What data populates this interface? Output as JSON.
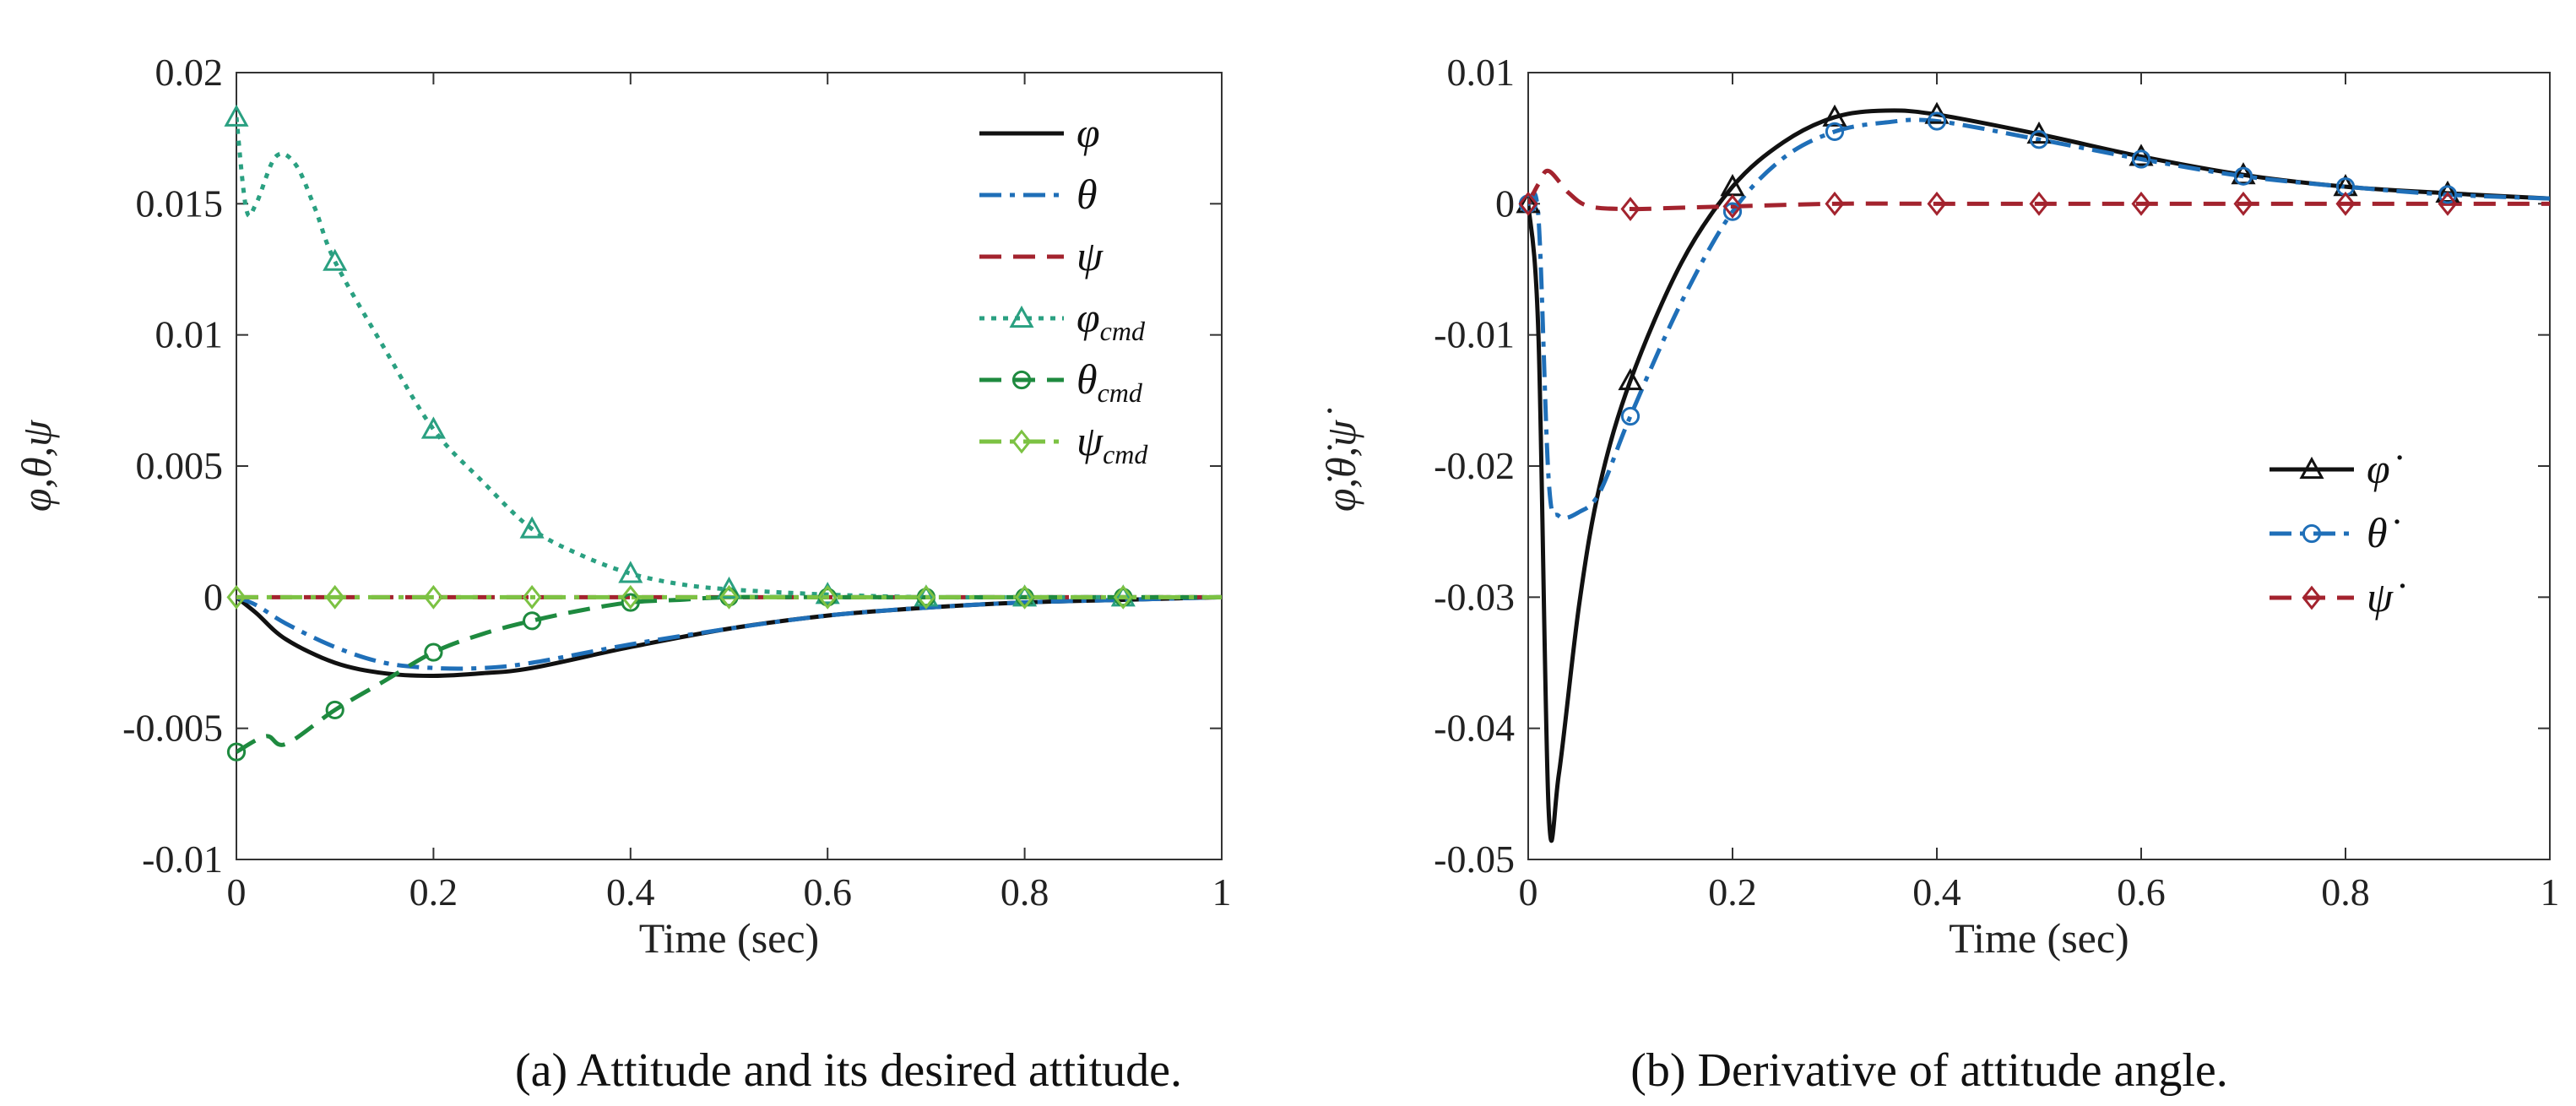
{
  "captions": [
    "(a)  Attitude and its desired attitude.",
    "(b)  Derivative of attitude angle."
  ],
  "chart_data": [
    {
      "type": "line",
      "xlabel": "Time (sec)",
      "ylabel": "φ,θ,ψ",
      "xlim": [
        0,
        1
      ],
      "ylim": [
        -0.01,
        0.02
      ],
      "xticks": [
        "0",
        "0.2",
        "0.4",
        "0.6",
        "0.8",
        "1"
      ],
      "yticks": [
        "-0.01",
        "-0.005",
        "0",
        "0.005",
        "0.01",
        "0.015",
        "0.02"
      ],
      "grid": false,
      "legend": "top-right",
      "series": [
        {
          "name": "φ",
          "sub": "",
          "color": "#111111",
          "dash": "solid",
          "marker": "none",
          "x": [
            0,
            0.02,
            0.05,
            0.1,
            0.15,
            0.2,
            0.25,
            0.3,
            0.4,
            0.5,
            0.6,
            0.7,
            0.8,
            0.9,
            1.0
          ],
          "y": [
            0,
            -0.0006,
            -0.0016,
            -0.0025,
            -0.0029,
            -0.003,
            -0.0029,
            -0.0027,
            -0.0019,
            -0.0012,
            -0.0007,
            -0.0004,
            -0.0002,
            -0.0001,
            0
          ]
        },
        {
          "name": "θ",
          "sub": "",
          "color": "#1f6fb8",
          "dash": "dashdot",
          "marker": "none",
          "x": [
            0,
            0.02,
            0.05,
            0.1,
            0.15,
            0.2,
            0.25,
            0.3,
            0.4,
            0.5,
            0.6,
            0.7,
            0.8,
            0.9,
            1.0
          ],
          "y": [
            0,
            -0.0003,
            -0.001,
            -0.0019,
            -0.0025,
            -0.0027,
            -0.0027,
            -0.0025,
            -0.0018,
            -0.0012,
            -0.0007,
            -0.0004,
            -0.0002,
            -0.0001,
            0
          ]
        },
        {
          "name": "ψ",
          "sub": "",
          "color": "#a3232e",
          "dash": "dash",
          "marker": "none",
          "x": [
            0,
            0.5,
            1.0
          ],
          "y": [
            0,
            0,
            0
          ]
        },
        {
          "name": "φ",
          "sub": "cmd",
          "color": "#2aa081",
          "dash": "dot",
          "marker": "triangle",
          "x": [
            0,
            0.01,
            0.02,
            0.04,
            0.06,
            0.08,
            0.1,
            0.15,
            0.2,
            0.25,
            0.3,
            0.35,
            0.4,
            0.45,
            0.5,
            0.6,
            0.7,
            0.8,
            0.9,
            1.0
          ],
          "y": [
            0.0183,
            0.0148,
            0.015,
            0.0168,
            0.0165,
            0.0148,
            0.0128,
            0.0095,
            0.0064,
            0.0044,
            0.0026,
            0.0016,
            0.0009,
            0.0005,
            0.0003,
            0.0001,
            0,
            0,
            0,
            0
          ],
          "markers_x": [
            0,
            0.1,
            0.2,
            0.3,
            0.4,
            0.5,
            0.6,
            0.7,
            0.8,
            0.9
          ]
        },
        {
          "name": "θ",
          "sub": "cmd",
          "color": "#1e8a3f",
          "dash": "dash",
          "marker": "circle",
          "x": [
            0,
            0.03,
            0.05,
            0.1,
            0.15,
            0.2,
            0.25,
            0.3,
            0.35,
            0.4,
            0.45,
            0.5,
            0.6,
            0.7,
            0.8,
            0.9,
            1.0
          ],
          "y": [
            -0.0059,
            -0.0053,
            -0.0056,
            -0.0043,
            -0.0032,
            -0.0021,
            -0.0014,
            -0.0009,
            -0.0005,
            -0.0002,
            -0.0001,
            0,
            0,
            0,
            0,
            0,
            0
          ],
          "markers_x": [
            0,
            0.1,
            0.2,
            0.3,
            0.4,
            0.5,
            0.6,
            0.7,
            0.8,
            0.9
          ]
        },
        {
          "name": "ψ",
          "sub": "cmd",
          "color": "#7cc243",
          "dash": "dashdot",
          "marker": "diamond",
          "x": [
            0,
            0.5,
            1.0
          ],
          "y": [
            0,
            0,
            0
          ],
          "markers_x": [
            0,
            0.1,
            0.2,
            0.3,
            0.4,
            0.5,
            0.6,
            0.7,
            0.8,
            0.9
          ]
        }
      ]
    },
    {
      "type": "line",
      "xlabel": "Time (sec)",
      "ylabel": "φ̇,θ̇,ψ̇",
      "xlim": [
        0,
        1
      ],
      "ylim": [
        -0.05,
        0.01
      ],
      "xticks": [
        "0",
        "0.2",
        "0.4",
        "0.6",
        "0.8",
        "1"
      ],
      "yticks": [
        "-0.05",
        "-0.04",
        "-0.03",
        "-0.02",
        "-0.01",
        "0",
        "0.01"
      ],
      "grid": false,
      "legend": "middle-right",
      "series": [
        {
          "name": "φ̇",
          "color": "#111111",
          "dash": "solid",
          "marker": "triangle",
          "x": [
            0,
            0.01,
            0.02,
            0.03,
            0.05,
            0.07,
            0.1,
            0.15,
            0.2,
            0.25,
            0.3,
            0.35,
            0.4,
            0.5,
            0.6,
            0.7,
            0.8,
            0.9,
            1.0
          ],
          "y": [
            0,
            -0.01,
            -0.0462,
            -0.0435,
            -0.0305,
            -0.0215,
            -0.0135,
            -0.0045,
            0.0013,
            0.0047,
            0.0066,
            0.0071,
            0.0068,
            0.0053,
            0.0036,
            0.0022,
            0.0013,
            0.0008,
            0.0004
          ],
          "markers_x": [
            0,
            0.1,
            0.2,
            0.3,
            0.4,
            0.5,
            0.6,
            0.7,
            0.8,
            0.9
          ]
        },
        {
          "name": "θ̇",
          "color": "#1f6fb8",
          "dash": "dashdot",
          "marker": "circle",
          "x": [
            0,
            0.01,
            0.02,
            0.03,
            0.05,
            0.07,
            0.1,
            0.15,
            0.2,
            0.25,
            0.3,
            0.35,
            0.4,
            0.5,
            0.6,
            0.7,
            0.8,
            0.9,
            1.0
          ],
          "y": [
            0,
            -0.001,
            -0.021,
            -0.0238,
            -0.0235,
            -0.022,
            -0.0162,
            -0.0075,
            -0.0006,
            0.0035,
            0.0055,
            0.0062,
            0.0063,
            0.0049,
            0.0034,
            0.0021,
            0.0013,
            0.0007,
            0.0004
          ],
          "markers_x": [
            0,
            0.1,
            0.2,
            0.3,
            0.4,
            0.5,
            0.6,
            0.7,
            0.8,
            0.9
          ]
        },
        {
          "name": "ψ̇",
          "color": "#a3232e",
          "dash": "dash",
          "marker": "diamond",
          "x": [
            0,
            0.01,
            0.02,
            0.04,
            0.06,
            0.1,
            0.15,
            0.2,
            0.3,
            0.4,
            0.5,
            0.6,
            0.7,
            0.8,
            0.9,
            1.0
          ],
          "y": [
            0,
            0.0015,
            0.0025,
            0.0008,
            -0.0002,
            -0.0004,
            -0.0003,
            -0.0002,
            0,
            0,
            0,
            0,
            0,
            0,
            0,
            0
          ],
          "markers_x": [
            0,
            0.1,
            0.2,
            0.3,
            0.4,
            0.5,
            0.6,
            0.7,
            0.8,
            0.9
          ]
        }
      ]
    }
  ]
}
